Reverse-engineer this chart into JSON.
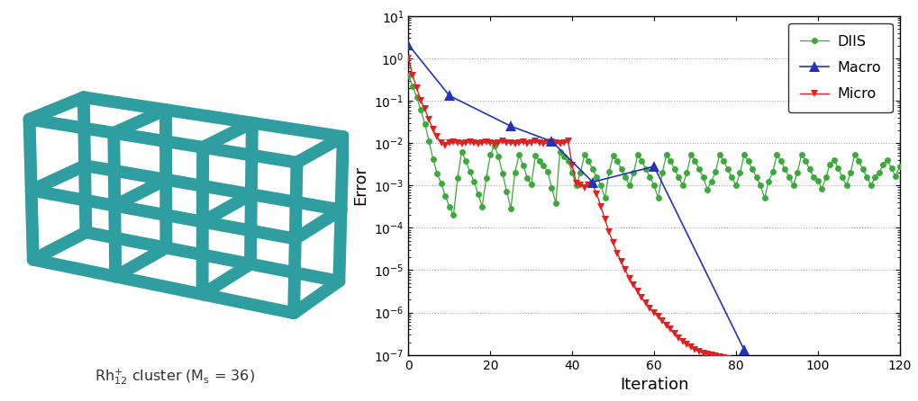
{
  "xlabel": "Iteration",
  "ylabel": "Error",
  "label_text": "Rh$_{12}^{+}$ cluster (M$_\\mathrm{s}$ = 36)",
  "diis_color": "#3aaa3a",
  "macro_color": "#2233bb",
  "micro_color": "#dd2222",
  "teal_color": "#2e9ea0",
  "grid_color": "#aaaaaa",
  "legend_labels": [
    "DIIS",
    "Macro",
    "Micro"
  ],
  "diis_log": [
    -0.4,
    -0.65,
    -0.92,
    -1.22,
    -1.55,
    -1.95,
    -2.38,
    -2.72,
    -2.95,
    -3.25,
    -3.5,
    -3.7,
    -2.82,
    -2.2,
    -2.42,
    -2.68,
    -2.9,
    -3.2,
    -3.5,
    -2.82,
    -2.28,
    -2.05,
    -2.32,
    -2.72,
    -3.15,
    -3.55,
    -2.7,
    -2.28,
    -2.52,
    -2.82,
    -2.98,
    -2.3,
    -2.42,
    -2.52,
    -2.68,
    -3.05,
    -3.42,
    -2.2,
    -2.32,
    -2.42,
    -2.7,
    -3.0,
    -2.7,
    -2.28,
    -2.42,
    -2.62,
    -2.8,
    -3.0,
    -3.3,
    -2.68,
    -2.3,
    -2.42,
    -2.62,
    -2.8,
    -3.0,
    -2.7,
    -2.28,
    -2.42,
    -2.62,
    -2.8,
    -3.0,
    -3.3,
    -2.7,
    -2.28,
    -2.42,
    -2.62,
    -2.8,
    -3.0,
    -2.7,
    -2.28,
    -2.42,
    -2.62,
    -2.8,
    -3.1,
    -2.9,
    -2.68,
    -2.28,
    -2.42,
    -2.62,
    -2.8,
    -3.0,
    -2.7,
    -2.28,
    -2.42,
    -2.62,
    -2.8,
    -3.0,
    -3.3,
    -2.9,
    -2.68,
    -2.28,
    -2.42,
    -2.62,
    -2.8,
    -3.0,
    -2.7,
    -2.28,
    -2.42,
    -2.62,
    -2.8,
    -2.88,
    -3.08,
    -2.8,
    -2.5,
    -2.4,
    -2.6,
    -2.8,
    -3.0,
    -2.7,
    -2.28,
    -2.42,
    -2.62,
    -2.8,
    -3.0,
    -2.8,
    -2.7,
    -2.5,
    -2.4,
    -2.6,
    -2.78,
    -2.55
  ],
  "macro_x": [
    0,
    10,
    25,
    35,
    45,
    60,
    82
  ],
  "macro_y_log": [
    0.32,
    -0.88,
    -1.6,
    -1.96,
    -2.92,
    -2.55,
    -6.88
  ],
  "micro_log": [
    0.0,
    -0.4,
    -0.7,
    -1.0,
    -1.2,
    -1.45,
    -1.68,
    -1.85,
    -2.0,
    -2.05,
    -2.0,
    -1.98,
    -2.0,
    -2.02,
    -2.0,
    -1.98,
    -2.0,
    -2.02,
    -2.0,
    -1.98,
    -2.0,
    -2.02,
    -2.0,
    -1.96,
    -2.0,
    -2.0,
    -2.02,
    -2.0,
    -1.98,
    -2.02,
    -2.0,
    -1.96,
    -2.0,
    -2.02,
    -2.0,
    -1.98,
    -2.0,
    -2.02,
    -2.0,
    -1.96,
    -2.52,
    -2.95,
    -3.0,
    -3.05,
    -3.0,
    -2.98,
    -3.2,
    -3.5,
    -3.8,
    -4.1,
    -4.35,
    -4.6,
    -4.8,
    -5.0,
    -5.2,
    -5.35,
    -5.5,
    -5.65,
    -5.78,
    -5.9,
    -6.0,
    -6.1,
    -6.2,
    -6.3,
    -6.4,
    -6.5,
    -6.6,
    -6.68,
    -6.75,
    -6.82,
    -6.88,
    -6.92,
    -6.96,
    -6.98,
    -7.0,
    -7.02,
    -7.05,
    -7.08,
    -7.1,
    -7.12,
    -7.15,
    -7.18,
    -7.2
  ]
}
